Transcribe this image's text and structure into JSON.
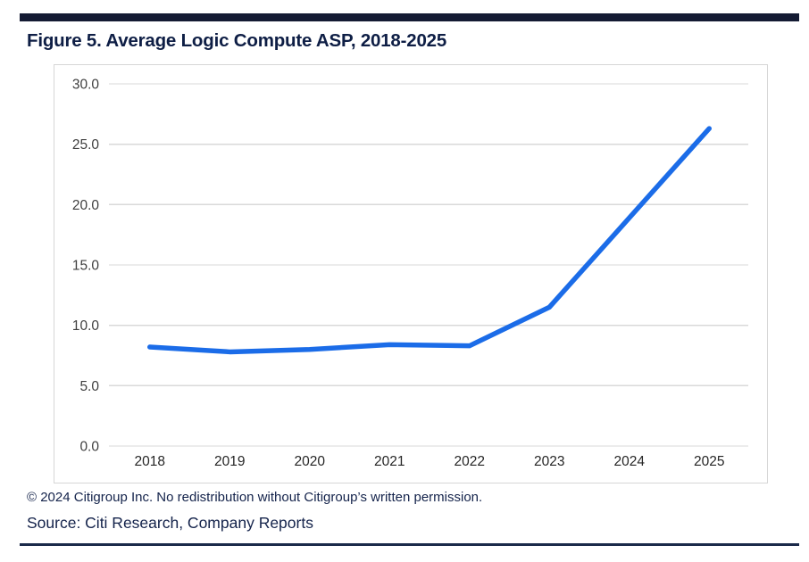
{
  "title": "Figure 5. Average Logic Compute ASP, 2018-2025",
  "colors": {
    "top_bar": "#141b33",
    "bottom_rule": "#1b2a4a",
    "title_text": "#0e1e45",
    "footer_text": "#14234b",
    "line": "#1b6ce8",
    "gridline": "#d9d9d9",
    "axis_tick_text": "#3f3f3f",
    "x_tick_text": "#262626",
    "chart_border": "#d6d6d6"
  },
  "chart_data": {
    "type": "line",
    "title": "Figure 5. Average Logic Compute ASP, 2018-2025",
    "categories": [
      "2018",
      "2019",
      "2020",
      "2021",
      "2022",
      "2023",
      "2024",
      "2025"
    ],
    "series": [
      {
        "name": "Average Logic Compute ASP",
        "values": [
          8.2,
          7.8,
          8.0,
          8.4,
          8.3,
          11.5,
          18.9,
          26.3
        ],
        "color": "#1b6ce8"
      }
    ],
    "xlabel": "",
    "ylabel": "",
    "ylim": [
      0,
      30
    ],
    "yticks": [
      0,
      5,
      10,
      15,
      20,
      25,
      30
    ],
    "ytick_labels": [
      "0.0",
      "5.0",
      "10.0",
      "15.0",
      "20.0",
      "25.0",
      "30.0"
    ],
    "grid": true,
    "legend": "none"
  },
  "footer": {
    "copyright": "© 2024 Citigroup Inc. No redistribution without Citigroup’s written permission.",
    "source": "Source: Citi Research, Company Reports"
  }
}
